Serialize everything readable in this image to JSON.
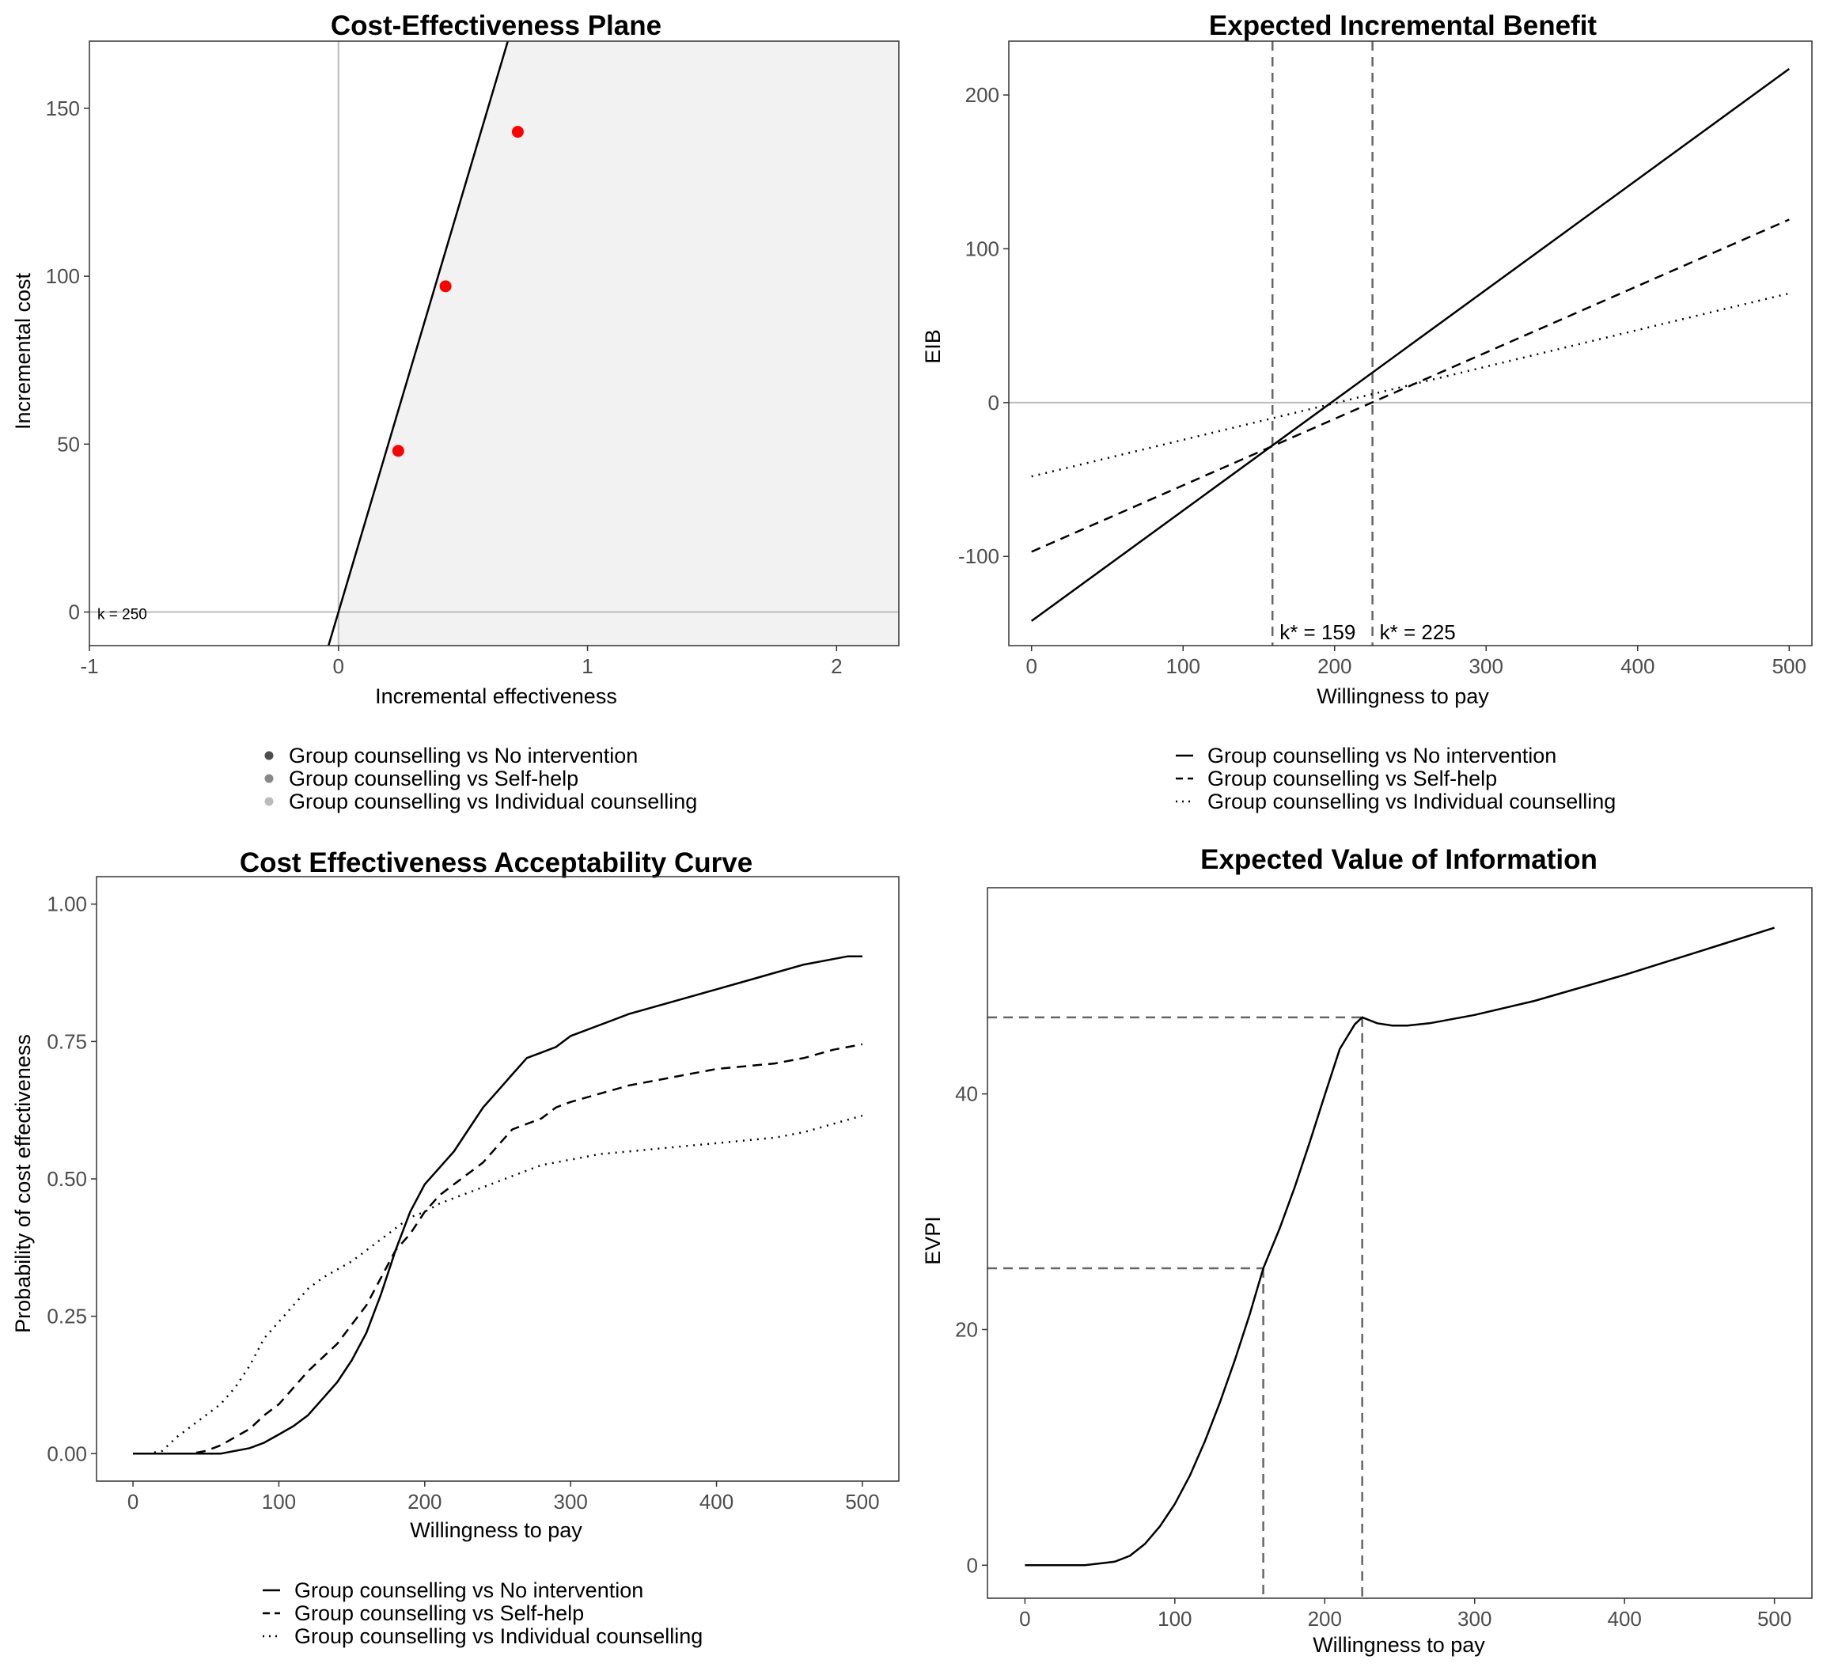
{
  "chart_data": [
    {
      "type": "scatter",
      "title": "Cost-Effectiveness Plane",
      "xlabel": "Incremental effectiveness",
      "ylabel": "Incremental cost",
      "xlim": [
        -1,
        2.25
      ],
      "ylim": [
        -10,
        170
      ],
      "xticks": [
        -1,
        0,
        1,
        2
      ],
      "yticks": [
        0,
        50,
        100,
        150
      ],
      "wtp_label": "k = 250",
      "wtp_slope": 250,
      "point_color": "#ff0000",
      "shade_color": "#f2f2f2",
      "points": [
        {
          "x": 0.24,
          "y": 48
        },
        {
          "x": 0.43,
          "y": 97
        },
        {
          "x": 0.72,
          "y": 143
        }
      ],
      "legend": [
        {
          "label": "Group counselling vs No intervention",
          "color": "#4d4d4d"
        },
        {
          "label": "Group counselling vs Self-help",
          "color": "#888888"
        },
        {
          "label": "Group counselling vs Individual counselling",
          "color": "#bbbbbb"
        }
      ]
    },
    {
      "type": "line",
      "title": "Expected Incremental Benefit",
      "xlabel": "Willingness to pay",
      "ylabel": "EIB",
      "xlim": [
        -15,
        515
      ],
      "ylim": [
        -158,
        235
      ],
      "xticks": [
        0,
        100,
        200,
        300,
        400,
        500
      ],
      "yticks": [
        -100,
        0,
        100,
        200
      ],
      "vlines": [
        159,
        225
      ],
      "annotations": [
        "k* = 159",
        "k* = 225"
      ],
      "series": [
        {
          "name": "Group counselling vs No intervention",
          "dash": "solid",
          "x": [
            0,
            500
          ],
          "y": [
            -142,
            217
          ]
        },
        {
          "name": "Group counselling vs Self-help",
          "dash": "dashed",
          "x": [
            0,
            500
          ],
          "y": [
            -97,
            119
          ]
        },
        {
          "name": "Group counselling vs Individual counselling",
          "dash": "dotted",
          "x": [
            0,
            500
          ],
          "y": [
            -48,
            71
          ]
        }
      ],
      "legend": [
        {
          "label": "Group counselling vs No intervention"
        },
        {
          "label": "Group counselling vs Self-help"
        },
        {
          "label": "Group counselling vs Individual counselling"
        }
      ]
    },
    {
      "type": "line",
      "title": "Cost Effectiveness Acceptability Curve",
      "xlabel": "Willingness to pay",
      "ylabel": "Probability of cost effectiveness",
      "xlim": [
        -25,
        525
      ],
      "ylim": [
        -0.05,
        1.05
      ],
      "xticks": [
        0,
        100,
        200,
        300,
        400,
        500
      ],
      "yticks": [
        "0.00",
        "0.25",
        "0.50",
        "0.75",
        "1.00"
      ],
      "series": [
        {
          "name": "Group counselling vs No intervention",
          "dash": "solid",
          "x": [
            0,
            60,
            70,
            80,
            90,
            100,
            110,
            120,
            130,
            140,
            150,
            160,
            170,
            180,
            190,
            200,
            210,
            220,
            230,
            240,
            250,
            260,
            270,
            280,
            290,
            300,
            320,
            340,
            360,
            380,
            400,
            420,
            440,
            460,
            480,
            490,
            500
          ],
          "y": [
            0,
            0,
            0.005,
            0.01,
            0.02,
            0.035,
            0.05,
            0.07,
            0.1,
            0.13,
            0.17,
            0.22,
            0.29,
            0.37,
            0.44,
            0.49,
            0.52,
            0.55,
            0.59,
            0.63,
            0.66,
            0.69,
            0.72,
            0.73,
            0.74,
            0.76,
            0.78,
            0.8,
            0.815,
            0.83,
            0.845,
            0.86,
            0.875,
            0.89,
            0.9,
            0.905,
            0.905
          ]
        },
        {
          "name": "Group counselling vs Self-help",
          "dash": "dashed",
          "x": [
            0,
            40,
            50,
            60,
            70,
            80,
            90,
            100,
            110,
            120,
            130,
            140,
            150,
            160,
            170,
            180,
            190,
            200,
            210,
            220,
            230,
            240,
            250,
            260,
            270,
            280,
            290,
            300,
            320,
            340,
            360,
            380,
            400,
            420,
            440,
            460,
            480,
            500
          ],
          "y": [
            0,
            0,
            0.005,
            0.015,
            0.03,
            0.045,
            0.07,
            0.09,
            0.12,
            0.15,
            0.175,
            0.2,
            0.235,
            0.27,
            0.32,
            0.37,
            0.4,
            0.44,
            0.47,
            0.49,
            0.51,
            0.53,
            0.56,
            0.59,
            0.6,
            0.61,
            0.63,
            0.64,
            0.655,
            0.67,
            0.68,
            0.69,
            0.7,
            0.705,
            0.71,
            0.72,
            0.735,
            0.745
          ]
        },
        {
          "name": "Group counselling vs Individual counselling",
          "dash": "dotted",
          "x": [
            0,
            10,
            20,
            30,
            40,
            50,
            60,
            70,
            80,
            90,
            100,
            110,
            120,
            130,
            140,
            150,
            160,
            170,
            180,
            190,
            200,
            210,
            220,
            230,
            240,
            250,
            260,
            280,
            300,
            320,
            340,
            360,
            380,
            400,
            420,
            440,
            460,
            480,
            500
          ],
          "y": [
            0,
            0,
            0.005,
            0.03,
            0.05,
            0.07,
            0.09,
            0.12,
            0.16,
            0.21,
            0.24,
            0.27,
            0.3,
            0.32,
            0.335,
            0.35,
            0.37,
            0.39,
            0.41,
            0.43,
            0.44,
            0.455,
            0.465,
            0.475,
            0.485,
            0.495,
            0.505,
            0.525,
            0.535,
            0.545,
            0.55,
            0.555,
            0.56,
            0.565,
            0.57,
            0.575,
            0.585,
            0.6,
            0.615
          ]
        }
      ],
      "legend": [
        {
          "label": "Group counselling vs No intervention"
        },
        {
          "label": "Group counselling vs Self-help"
        },
        {
          "label": "Group counselling vs Individual counselling"
        }
      ]
    },
    {
      "type": "line",
      "title": "Expected Value of Information",
      "xlabel": "Willingness to pay",
      "ylabel": "EVPI",
      "xlim": [
        -25,
        525
      ],
      "ylim": [
        -2.8,
        57.5
      ],
      "xticks": [
        0,
        100,
        200,
        300,
        400,
        500
      ],
      "yticks": [
        0,
        20,
        40
      ],
      "markers": [
        {
          "x": 159,
          "y": 25.2
        },
        {
          "x": 225,
          "y": 46.5
        }
      ],
      "series": [
        {
          "name": "EVPI",
          "dash": "solid",
          "x": [
            0,
            40,
            60,
            70,
            80,
            90,
            100,
            110,
            120,
            130,
            140,
            150,
            159,
            170,
            180,
            190,
            200,
            210,
            220,
            225,
            235,
            245,
            255,
            270,
            300,
            340,
            400,
            460,
            500
          ],
          "y": [
            0,
            0,
            0.3,
            0.8,
            1.8,
            3.3,
            5.2,
            7.6,
            10.5,
            13.8,
            17.4,
            21.3,
            25.2,
            28.6,
            32.1,
            35.9,
            39.9,
            43.8,
            45.9,
            46.5,
            46.0,
            45.8,
            45.8,
            46.0,
            46.7,
            47.9,
            50.1,
            52.5,
            54.1
          ]
        }
      ]
    }
  ]
}
